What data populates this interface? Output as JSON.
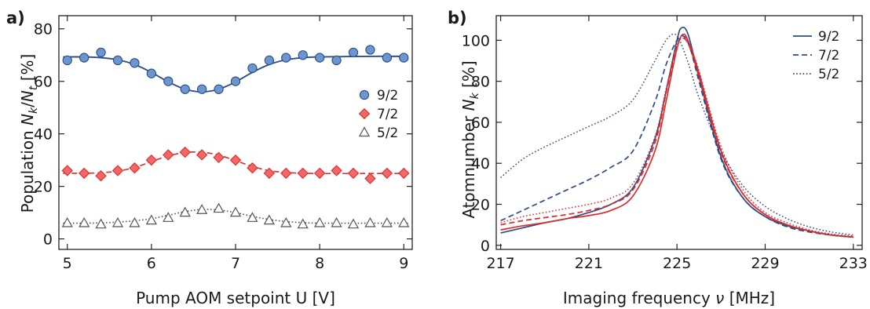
{
  "panels": {
    "a": {
      "tag": "a)"
    },
    "b": {
      "tag": "b)"
    }
  },
  "colors": {
    "blue": "#2e4d86",
    "blue_fill": "#6b96cf",
    "red": "#e02a2a",
    "red_fill": "#f26767",
    "gray": "#555555",
    "axis": "#222222"
  },
  "chart_data": [
    {
      "type": "scatter",
      "panel": "a)",
      "xlabel": "Pump AOM setpoint U [V]",
      "ylabel": "Population N_k/N_t [%]",
      "xlim": [
        4.9,
        9.1
      ],
      "ylim": [
        -4,
        85
      ],
      "xticks": [
        5,
        6,
        7,
        8,
        9
      ],
      "yticks": [
        0,
        20,
        40,
        60,
        80
      ],
      "x_tick_labels": [
        "5",
        "6",
        "7",
        "8",
        "9"
      ],
      "y_tick_labels": [
        "0",
        "20",
        "40",
        "60",
        "80"
      ],
      "grid": false,
      "legend_position": "right",
      "series": [
        {
          "name": "9/2",
          "marker": "circle",
          "line_style": "solid",
          "x": [
            5.0,
            5.2,
            5.4,
            5.6,
            5.8,
            6.0,
            6.2,
            6.4,
            6.6,
            6.8,
            7.0,
            7.2,
            7.4,
            7.6,
            7.8,
            8.0,
            8.2,
            8.4,
            8.6,
            8.8,
            9.0
          ],
          "y": [
            68,
            69,
            71,
            68,
            67,
            63,
            60,
            57,
            57,
            57,
            60,
            65,
            68,
            69,
            70,
            69,
            68,
            71,
            72,
            69,
            69
          ],
          "fit_x": [
            4.95,
            5.2,
            5.4,
            5.6,
            5.8,
            6.0,
            6.2,
            6.4,
            6.6,
            6.8,
            7.0,
            7.2,
            7.4,
            7.6,
            7.8,
            8.0,
            8.5,
            9.05
          ],
          "fit_y": [
            69.3,
            69.3,
            69.0,
            68.2,
            66.4,
            63.4,
            59.8,
            57.0,
            56.0,
            57.0,
            59.8,
            63.4,
            66.4,
            68.2,
            69.0,
            69.3,
            69.5,
            69.5
          ]
        },
        {
          "name": "7/2",
          "marker": "diamond",
          "line_style": "dashed",
          "x": [
            5.0,
            5.2,
            5.4,
            5.6,
            5.8,
            6.0,
            6.2,
            6.4,
            6.6,
            6.8,
            7.0,
            7.2,
            7.4,
            7.6,
            7.8,
            8.0,
            8.2,
            8.4,
            8.6,
            8.8,
            9.0
          ],
          "y": [
            26,
            25,
            24,
            26,
            27,
            30,
            32,
            33,
            32,
            31,
            30,
            27,
            25,
            25,
            25,
            25,
            26,
            25,
            23,
            25,
            25
          ],
          "fit_x": [
            4.95,
            5.2,
            5.4,
            5.6,
            5.8,
            6.0,
            6.2,
            6.4,
            6.6,
            6.8,
            7.0,
            7.2,
            7.4,
            7.6,
            7.8,
            8.0,
            8.5,
            9.05
          ],
          "fit_y": [
            25.0,
            25.0,
            25.2,
            25.8,
            27.2,
            29.4,
            31.6,
            32.9,
            33.0,
            31.9,
            29.8,
            27.6,
            26.0,
            25.3,
            25.0,
            24.9,
            24.9,
            24.9
          ]
        },
        {
          "name": "5/2",
          "marker": "triangle",
          "line_style": "dotted",
          "x": [
            5.0,
            5.2,
            5.4,
            5.6,
            5.8,
            6.0,
            6.2,
            6.4,
            6.6,
            6.8,
            7.0,
            7.2,
            7.4,
            7.6,
            7.8,
            8.0,
            8.2,
            8.4,
            8.6,
            8.8,
            9.0
          ],
          "y": [
            6,
            6,
            5.5,
            6,
            6,
            7,
            8,
            10,
            11,
            11.5,
            10,
            8,
            7,
            6,
            5.5,
            6,
            6,
            5.5,
            6,
            6,
            6
          ],
          "fit_x": [
            4.95,
            5.2,
            5.4,
            5.6,
            5.8,
            6.0,
            6.2,
            6.4,
            6.6,
            6.8,
            7.0,
            7.2,
            7.4,
            7.6,
            7.8,
            8.0,
            8.5,
            9.05
          ],
          "fit_y": [
            6.0,
            6.0,
            6.1,
            6.4,
            6.9,
            7.7,
            9.0,
            10.4,
            11.2,
            11.0,
            10.0,
            8.6,
            7.4,
            6.6,
            6.2,
            6.0,
            6.0,
            6.0
          ]
        }
      ]
    },
    {
      "type": "line",
      "panel": "b)",
      "xlabel": "Imaging frequency ν [MHz]",
      "ylabel": "Atomnumber N_k [%]",
      "xlim": [
        216.8,
        233.4
      ],
      "ylim": [
        -2,
        112
      ],
      "xticks": [
        217,
        221,
        225,
        229,
        233
      ],
      "yticks": [
        0,
        20,
        40,
        60,
        80,
        100
      ],
      "x_tick_labels": [
        "217",
        "221",
        "225",
        "229",
        "233"
      ],
      "y_tick_labels": [
        "0",
        "20",
        "40",
        "60",
        "80",
        "100"
      ],
      "grid": false,
      "legend_position": "top-right",
      "legend": [
        {
          "name": "9/2",
          "line_style": "solid"
        },
        {
          "name": "7/2",
          "line_style": "dashed"
        },
        {
          "name": "5/2",
          "line_style": "dotted"
        }
      ],
      "series": [
        {
          "name": "9/2",
          "color": "blue",
          "line_style": "solid",
          "x": [
            217,
            218,
            219,
            220,
            221,
            222,
            223,
            224,
            224.5,
            225,
            225.2,
            225.5,
            226,
            227,
            228,
            229,
            230,
            231,
            232,
            233
          ],
          "y": [
            6,
            8.5,
            11,
            13,
            16,
            20,
            28,
            52,
            75,
            100,
            106,
            103,
            82,
            43,
            23,
            14,
            9.5,
            7,
            5,
            4
          ]
        },
        {
          "name": "9/2",
          "color": "red",
          "line_style": "solid",
          "x": [
            217,
            218,
            219,
            220,
            221,
            222,
            223,
            224,
            224.5,
            225,
            225.3,
            225.6,
            226,
            227,
            228,
            229,
            230,
            231,
            232,
            233
          ],
          "y": [
            7.5,
            9.5,
            11,
            13,
            14.5,
            17,
            24,
            46,
            70,
            96,
            103,
            97,
            84,
            46,
            25,
            15,
            10,
            7,
            5,
            4
          ]
        },
        {
          "name": "7/2",
          "color": "blue",
          "line_style": "dashed",
          "x": [
            217,
            218,
            219,
            220,
            221,
            222,
            223,
            224,
            224.5,
            225,
            225.3,
            225.6,
            226,
            227,
            228,
            229,
            230,
            231,
            232,
            233
          ],
          "y": [
            12,
            17,
            22,
            27,
            32,
            38,
            46,
            70,
            88,
            100,
            102,
            96,
            80,
            42,
            23,
            14,
            9,
            6.5,
            5,
            4
          ]
        },
        {
          "name": "7/2",
          "color": "red",
          "line_style": "dashed",
          "x": [
            217,
            218,
            219,
            220,
            221,
            222,
            223,
            224,
            224.5,
            225,
            225.3,
            225.6,
            226,
            227,
            228,
            229,
            230,
            231,
            232,
            233
          ],
          "y": [
            10,
            12,
            13.5,
            15,
            17,
            20,
            27,
            50,
            74,
            97,
            101,
            96,
            82,
            45,
            25,
            15,
            10,
            7,
            5,
            4
          ]
        },
        {
          "name": "5/2",
          "color": "blue",
          "line_style": "dotted",
          "x": [
            217,
            218,
            219,
            220,
            221,
            222,
            223,
            224,
            224.5,
            224.9,
            225.2,
            225.6,
            226,
            227,
            228,
            229,
            230,
            231,
            232,
            233
          ],
          "y": [
            33,
            42,
            48,
            53,
            58,
            63,
            71,
            90,
            100,
            103,
            98,
            86,
            72,
            46,
            29,
            19,
            13,
            9,
            6.5,
            5
          ]
        },
        {
          "name": "5/2",
          "color": "red",
          "line_style": "dotted",
          "x": [
            217,
            218,
            219,
            220,
            221,
            222,
            223,
            224,
            224.5,
            225,
            225.3,
            225.6,
            226,
            227,
            228,
            229,
            230,
            231,
            232,
            233
          ],
          "y": [
            11,
            14,
            16,
            18,
            20,
            23,
            30,
            53,
            76,
            98,
            101,
            97,
            85,
            48,
            27,
            16,
            11,
            7.5,
            5.5,
            4.5
          ]
        }
      ]
    }
  ]
}
